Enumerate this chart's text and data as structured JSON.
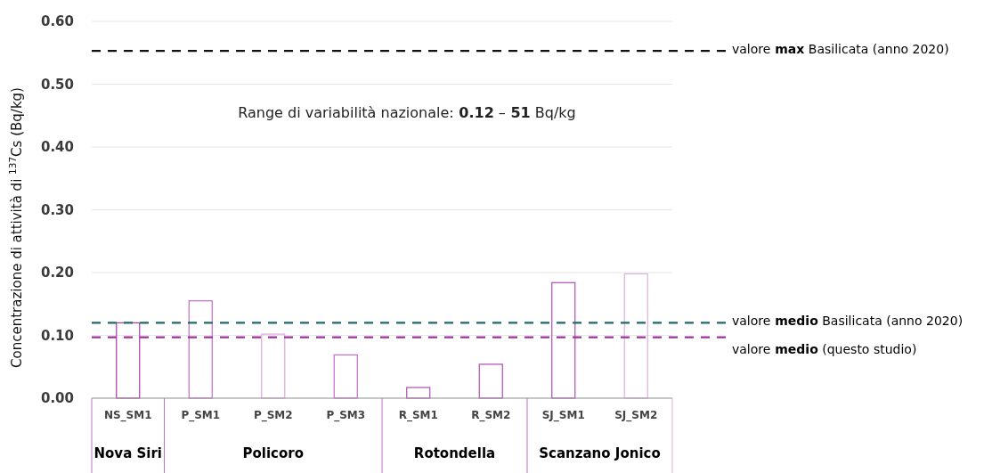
{
  "chart_data": {
    "type": "bar",
    "ylabel": "Concentrazione di attività di $^{137}$Cs (Bq/kg)",
    "categories": [
      "NS_SM1",
      "P_SM1",
      "P_SM2",
      "P_SM3",
      "R_SM1",
      "R_SM2",
      "SJ_SM1",
      "SJ_SM2"
    ],
    "values": [
      0.12,
      0.155,
      0.102,
      0.069,
      0.017,
      0.054,
      0.184,
      0.198
    ],
    "colors": [
      "#a83aa8",
      "#c46ccb",
      "#dcaadc",
      "#c46ccb",
      "#b04cb4",
      "#b04cb4",
      "#b04cb4",
      "#dcb0dc"
    ],
    "ylim": [
      0,
      0.6
    ],
    "yticks": [
      {
        "value": 0,
        "label": "0.00"
      },
      {
        "value": 0.1,
        "label": "0.10"
      },
      {
        "value": 0.2,
        "label": "0.20"
      },
      {
        "value": 0.3,
        "label": "0.30"
      },
      {
        "value": 0.4,
        "label": "0.40"
      },
      {
        "value": 0.5,
        "label": "0.50"
      },
      {
        "value": 0.6,
        "label": "0.60"
      }
    ],
    "grid": "y",
    "ref_lines": [
      {
        "axis": "y",
        "value": 0.553,
        "label": "valore max Basilicata (anno 2020)",
        "color": "#111111",
        "line_style": "dashed"
      },
      {
        "axis": "y",
        "value": 0.12,
        "label": "valore medio Basilicata (anno 2020)",
        "color": "#1f6b6b",
        "line_style": "dashed"
      },
      {
        "axis": "y",
        "value": 0.097,
        "label": "valore medio (questo studio)",
        "color": "#a0309a",
        "line_style": "dashed"
      }
    ],
    "annotations": [
      "Range di variabilità nazionale: 0.12 – 51 Bq/kg",
      "Nova Siri",
      "Policoro",
      "Rotondella",
      "Scanzano Jonico"
    ]
  }
}
